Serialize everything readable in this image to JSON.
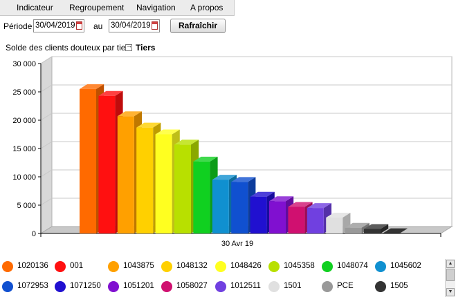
{
  "menu": {
    "items": [
      {
        "label": "Indicateur"
      },
      {
        "label": "Regroupement"
      },
      {
        "label": "Navigation"
      },
      {
        "label": "A propos"
      }
    ]
  },
  "toolbar": {
    "period_label": "Période",
    "date_from": "30/04/2019",
    "to_label": "au",
    "date_to": "30/04/2019",
    "refresh_label": "Rafraîchir"
  },
  "chart_header": {
    "title": "Solde des clients douteux par tiers",
    "grouping_link": "Tiers",
    "grouping_icon": "drill-arrow-icon"
  },
  "chart_data": {
    "type": "bar",
    "title": "Solde des clients douteux par tiers",
    "categories": [
      "30 Avr 19"
    ],
    "ylim": [
      0,
      30000
    ],
    "yticks": [
      "0",
      "5 000",
      "10 000",
      "15 000",
      "20 000",
      "25 000",
      "30 000"
    ],
    "grid": true,
    "three_d": true,
    "legend_position": "bottom",
    "series": [
      {
        "name": "1020136",
        "values": [
          25500
        ],
        "color": "#ff6a00"
      },
      {
        "name": "001",
        "values": [
          24300
        ],
        "color": "#ff1010"
      },
      {
        "name": "1043875",
        "values": [
          20700
        ],
        "color": "#ffa000"
      },
      {
        "name": "1048132",
        "values": [
          18700
        ],
        "color": "#ffd000"
      },
      {
        "name": "1048426",
        "values": [
          17500
        ],
        "color": "#ffff20"
      },
      {
        "name": "1045358",
        "values": [
          15700
        ],
        "color": "#b8e000"
      },
      {
        "name": "1048074",
        "values": [
          12700
        ],
        "color": "#10d020"
      },
      {
        "name": "1045602",
        "values": [
          9500
        ],
        "color": "#1090d0"
      },
      {
        "name": "1072953",
        "values": [
          9100
        ],
        "color": "#1050d0"
      },
      {
        "name": "1071250",
        "values": [
          6500
        ],
        "color": "#2010d0"
      },
      {
        "name": "1051201",
        "values": [
          5700
        ],
        "color": "#8010d0"
      },
      {
        "name": "1058027",
        "values": [
          4700
        ],
        "color": "#d01070"
      },
      {
        "name": "1012511",
        "values": [
          4500
        ],
        "color": "#7040e0"
      },
      {
        "name": "1501",
        "values": [
          2800
        ],
        "color": "#e0e0e0"
      },
      {
        "name": "PCE",
        "values": [
          1000
        ],
        "color": "#999999"
      },
      {
        "name": "1505",
        "values": [
          800
        ],
        "color": "#333333"
      },
      {
        "name": "",
        "values": [
          50
        ],
        "color": "#000000"
      }
    ]
  }
}
